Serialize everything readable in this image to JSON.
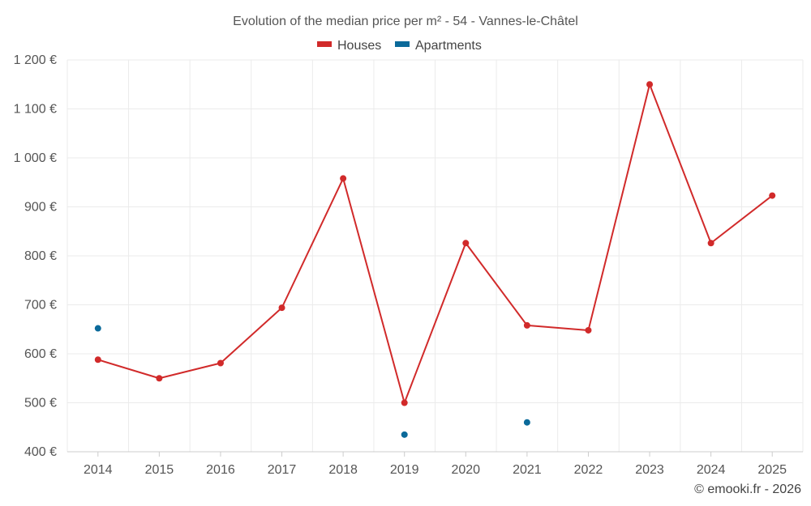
{
  "chart_data": {
    "type": "line",
    "title": "Evolution of the median price per m² - 54 - Vannes-le-Châtel",
    "categories": [
      "2014",
      "2015",
      "2016",
      "2017",
      "2018",
      "2019",
      "2020",
      "2021",
      "2022",
      "2023",
      "2024",
      "2025"
    ],
    "series": [
      {
        "name": "Houses",
        "color": "#d12a2a",
        "values": [
          588,
          550,
          581,
          694,
          958,
          500,
          826,
          658,
          648,
          1150,
          826,
          923
        ]
      },
      {
        "name": "Apartments",
        "color": "#0b6a9a",
        "values": [
          652,
          null,
          null,
          null,
          null,
          435,
          null,
          460,
          null,
          null,
          null,
          null
        ]
      }
    ],
    "ylim": [
      400,
      1200
    ],
    "yticks": [
      400,
      500,
      600,
      700,
      800,
      900,
      1000,
      1100,
      1200
    ],
    "ytick_labels": [
      "400 €",
      "500 €",
      "600 €",
      "700 €",
      "800 €",
      "900 €",
      "1 000 €",
      "1 100 €",
      "1 200 €"
    ],
    "grid": true,
    "legend_position": "top-center"
  },
  "credit": "© emooki.fr - 2026"
}
